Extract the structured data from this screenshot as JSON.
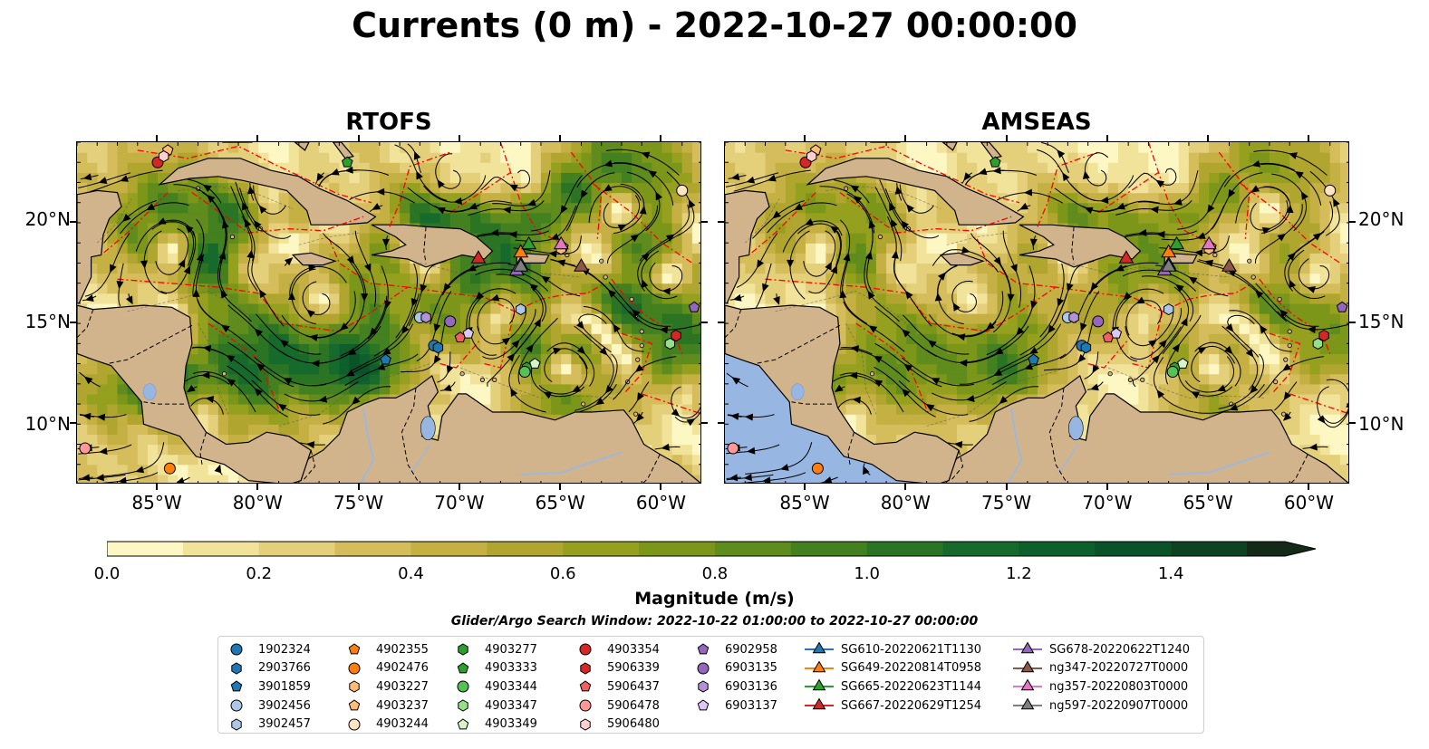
{
  "title": "Currents (0 m) - 2022-10-27 00:00:00",
  "panels": [
    {
      "title": "RTOFS"
    },
    {
      "title": "AMSEAS"
    }
  ],
  "lat_ticks": [
    "20°N",
    "15°N",
    "10°N"
  ],
  "lon_ticks": [
    "85°W",
    "80°W",
    "75°W",
    "70°W",
    "65°W",
    "60°W"
  ],
  "colorbar": {
    "label": "Magnitude (m/s)",
    "ticks": [
      "0.0",
      "0.2",
      "0.4",
      "0.6",
      "0.8",
      "1.0",
      "1.2",
      "1.4"
    ],
    "colors": [
      "#fdf7c3",
      "#f2e39a",
      "#e4cf7a",
      "#d6bd5c",
      "#c4b043",
      "#b0a62f",
      "#96a01f",
      "#7c9619",
      "#5f8c1c",
      "#43801f",
      "#2b7424",
      "#166a2c",
      "#0d5f2c",
      "#0a5228",
      "#0d4323",
      "#10351d",
      "#142a18"
    ]
  },
  "search_window": "Glider/Argo Search Window: 2022-10-22 01:00:00 to 2022-10-27 00:00:00",
  "legend": [
    {
      "label": "1902324",
      "marker": "circle",
      "color": "#1f77b4"
    },
    {
      "label": "2903766",
      "marker": "hexagon",
      "color": "#1f77b4"
    },
    {
      "label": "3901859",
      "marker": "pentagon",
      "color": "#1f77b4"
    },
    {
      "label": "3902456",
      "marker": "circle",
      "color": "#aec7e8"
    },
    {
      "label": "3902457",
      "marker": "hexagon",
      "color": "#aec7e8"
    },
    {
      "label": "4902355",
      "marker": "pentagon",
      "color": "#ff7f0e"
    },
    {
      "label": "4902476",
      "marker": "circle",
      "color": "#ff7f0e"
    },
    {
      "label": "4903227",
      "marker": "hexagon",
      "color": "#ffbb78"
    },
    {
      "label": "4903237",
      "marker": "pentagon",
      "color": "#ffbb78"
    },
    {
      "label": "4903244",
      "marker": "circle",
      "color": "#ffe4c4"
    },
    {
      "label": "4903277",
      "marker": "hexagon",
      "color": "#2ca02c"
    },
    {
      "label": "4903333",
      "marker": "pentagon",
      "color": "#2ca02c"
    },
    {
      "label": "4903344",
      "marker": "circle",
      "color": "#55c255"
    },
    {
      "label": "4903347",
      "marker": "hexagon",
      "color": "#98df8a"
    },
    {
      "label": "4903349",
      "marker": "pentagon",
      "color": "#d8f5c8"
    },
    {
      "label": "4903354",
      "marker": "circle",
      "color": "#d62728"
    },
    {
      "label": "5906339",
      "marker": "hexagon",
      "color": "#d62728"
    },
    {
      "label": "5906437",
      "marker": "pentagon",
      "color": "#f06060"
    },
    {
      "label": "5906478",
      "marker": "circle",
      "color": "#ff9896"
    },
    {
      "label": "5906480",
      "marker": "hexagon",
      "color": "#ffd0cf"
    },
    {
      "label": "6902958",
      "marker": "pentagon",
      "color": "#9467bd"
    },
    {
      "label": "6903135",
      "marker": "circle",
      "color": "#9467bd"
    },
    {
      "label": "6903136",
      "marker": "hexagon",
      "color": "#b294d6"
    },
    {
      "label": "6903137",
      "marker": "pentagon",
      "color": "#ddc8f2"
    },
    {
      "label": "SG610-20220621T1130",
      "marker": "triangle",
      "color": "#1f77b4"
    },
    {
      "label": "SG649-20220814T0958",
      "marker": "triangle",
      "color": "#ff7f0e"
    },
    {
      "label": "SG665-20220623T1144",
      "marker": "triangle",
      "color": "#2ca02c"
    },
    {
      "label": "SG667-20220629T1254",
      "marker": "triangle",
      "color": "#d62728"
    },
    {
      "label": "SG678-20220622T1240",
      "marker": "triangle",
      "color": "#9467bd"
    },
    {
      "label": "ng347-20220727T0000",
      "marker": "triangle",
      "color": "#8c564b"
    },
    {
      "label": "ng357-20220803T0000",
      "marker": "triangle",
      "color": "#e377c2"
    },
    {
      "label": "ng597-20220907T0000",
      "marker": "triangle",
      "color": "#7f7f7f"
    }
  ],
  "map": {
    "lon_range": [
      -89,
      -58
    ],
    "lat_range": [
      7,
      24
    ],
    "land_color": "#d2b48c",
    "ocean_pacific_color": "#97b6e1",
    "eez_color": "#ff0000",
    "observations": [
      {
        "legend": 0,
        "lon": -71.3,
        "lat": 13.9
      },
      {
        "legend": 1,
        "lon": -71.1,
        "lat": 13.8
      },
      {
        "legend": 2,
        "lon": -73.7,
        "lat": 13.2
      },
      {
        "legend": 3,
        "lon": -72.0,
        "lat": 15.3
      },
      {
        "legend": 4,
        "lon": -67.0,
        "lat": 15.7
      },
      {
        "legend": 5,
        "lon": -64.9,
        "lat": 18.8
      },
      {
        "legend": 6,
        "lon": -84.4,
        "lat": 7.8
      },
      {
        "legend": 7,
        "lon": -65.0,
        "lat": 18.7
      },
      {
        "legend": 8,
        "lon": -84.5,
        "lat": 23.6
      },
      {
        "legend": 9,
        "lon": -59.0,
        "lat": 21.6
      },
      {
        "legend": 10,
        "lon": -66.7,
        "lat": 12.8
      },
      {
        "legend": 11,
        "lon": -75.6,
        "lat": 23.0
      },
      {
        "legend": 12,
        "lon": -66.8,
        "lat": 12.6
      },
      {
        "legend": 13,
        "lon": -59.6,
        "lat": 14.0
      },
      {
        "legend": 14,
        "lon": -66.3,
        "lat": 13.0
      },
      {
        "legend": 15,
        "lon": -85.0,
        "lat": 23.0
      },
      {
        "legend": 16,
        "lon": -59.3,
        "lat": 14.4
      },
      {
        "legend": 17,
        "lon": -70.0,
        "lat": 14.3
      },
      {
        "legend": 18,
        "lon": -88.6,
        "lat": 8.8
      },
      {
        "legend": 19,
        "lon": -84.7,
        "lat": 23.3
      },
      {
        "legend": 20,
        "lon": -58.4,
        "lat": 15.8
      },
      {
        "legend": 21,
        "lon": -70.5,
        "lat": 15.1
      },
      {
        "legend": 22,
        "lon": -71.7,
        "lat": 15.3
      },
      {
        "legend": 23,
        "lon": -69.6,
        "lat": 14.5
      },
      {
        "legend": 24,
        "lon": -67.0,
        "lat": 17.9
      },
      {
        "legend": 25,
        "lon": -67.0,
        "lat": 18.5
      },
      {
        "legend": 26,
        "lon": -66.6,
        "lat": 18.9
      },
      {
        "legend": 27,
        "lon": -69.1,
        "lat": 18.2
      },
      {
        "legend": 28,
        "lon": -67.2,
        "lat": 17.6
      },
      {
        "legend": 29,
        "lon": -64.0,
        "lat": 17.8
      },
      {
        "legend": 30,
        "lon": -65.0,
        "lat": 18.9
      },
      {
        "legend": 31,
        "lon": -67.0,
        "lat": 17.8
      }
    ]
  }
}
